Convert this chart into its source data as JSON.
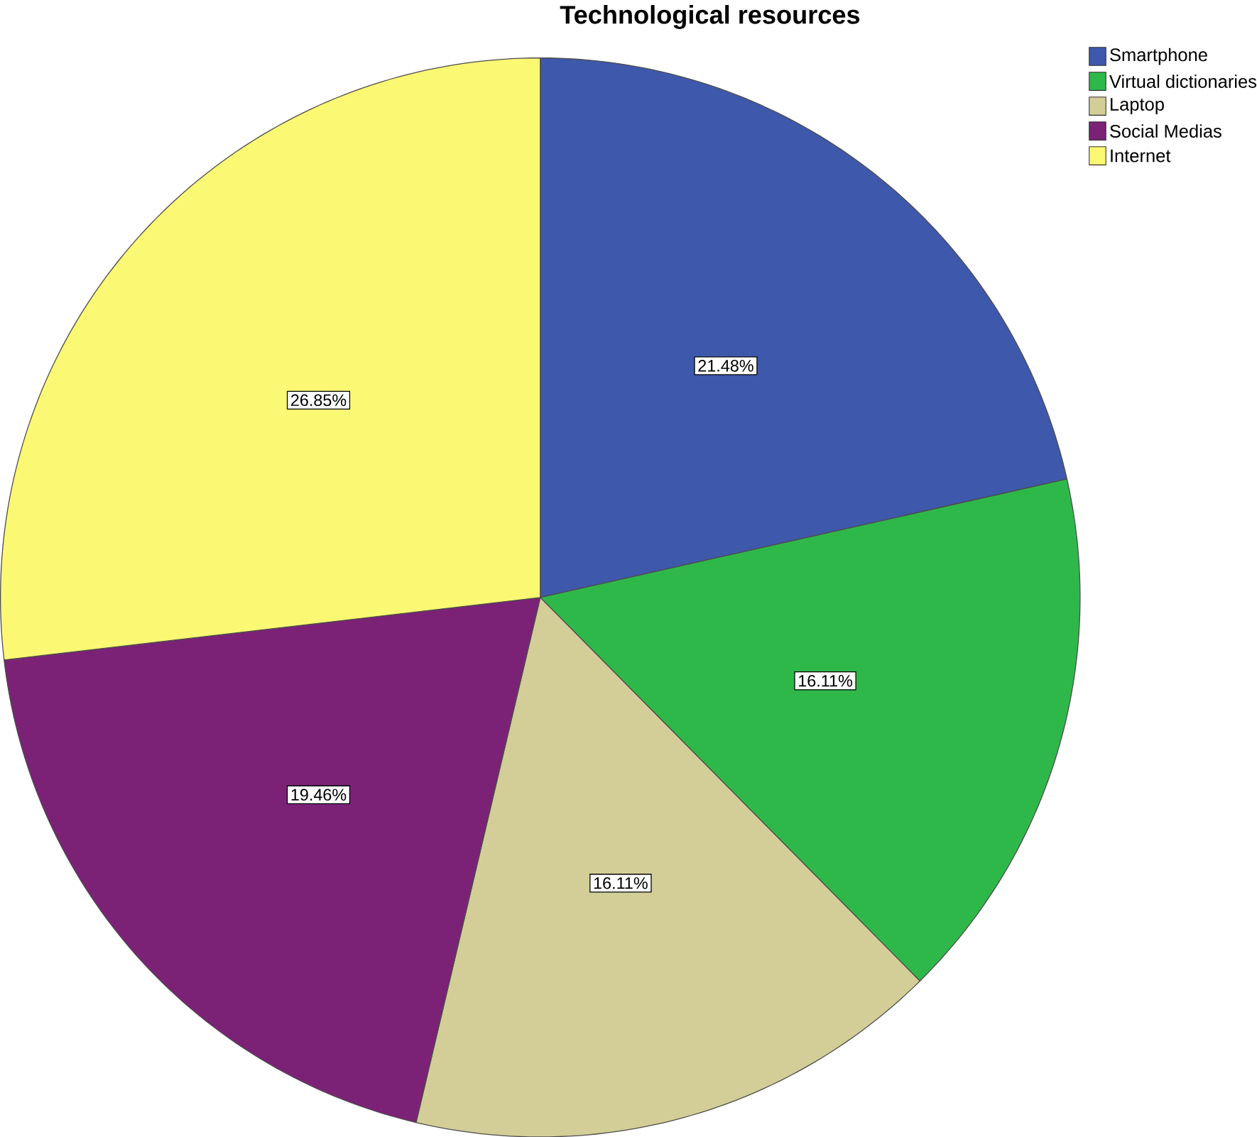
{
  "chart_data": {
    "type": "pie",
    "title": "Technological resources",
    "categories": [
      "Smartphone",
      "Virtual dictionaries",
      "Laptop",
      "Social Medias",
      "Internet"
    ],
    "values": [
      21.48,
      16.11,
      16.11,
      19.46,
      26.85
    ],
    "value_labels": [
      "21.48%",
      "16.11%",
      "16.11%",
      "19.46%",
      "26.85%"
    ],
    "colors": [
      "#3e58ac",
      "#2fb84a",
      "#d3ce97",
      "#7b2277",
      "#fbf873"
    ],
    "legend": "top right"
  }
}
